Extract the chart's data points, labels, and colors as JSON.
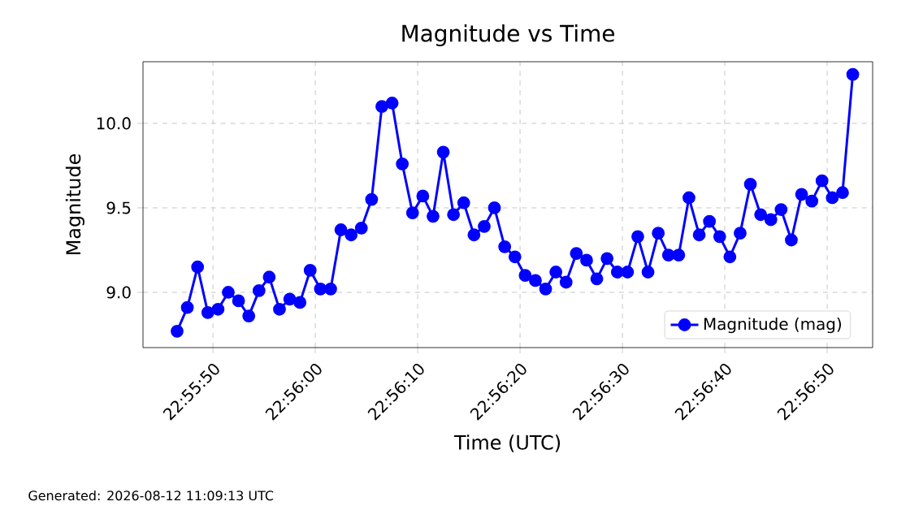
{
  "chart_data": {
    "type": "line",
    "title": "Magnitude vs Time",
    "xlabel": "Time (UTC)",
    "ylabel": "Magnitude",
    "x": [
      22.929583,
      22.929861,
      22.930139,
      22.930417,
      22.930694,
      22.930972,
      22.93125,
      22.931528,
      22.931806,
      22.932083,
      22.932361,
      22.932639,
      22.932917,
      22.933194,
      22.933472,
      22.93375,
      22.934028,
      22.934306,
      22.934583,
      22.934861,
      22.935139,
      22.935417,
      22.935694,
      22.935972,
      22.93625,
      22.936528,
      22.936806,
      22.937083,
      22.937361,
      22.937639,
      22.937917,
      22.938194,
      22.938472,
      22.93875,
      22.939028,
      22.939306,
      22.939583,
      22.939861,
      22.940139,
      22.940417,
      22.940694,
      22.940972,
      22.94125,
      22.941528,
      22.941806,
      22.942083,
      22.942361,
      22.942639,
      22.942917,
      22.943194,
      22.943472,
      22.94375,
      22.944028,
      22.944306,
      22.944583,
      22.944861,
      22.945139,
      22.945417,
      22.945694,
      22.945972,
      22.94625,
      22.946528,
      22.946806,
      22.947083,
      22.947361,
      22.947639,
      22.947917
    ],
    "series": [
      {
        "name": "Magnitude (mag)",
        "color": "#0000ff",
        "values": [
          8.77,
          8.91,
          9.15,
          8.88,
          8.9,
          9.0,
          8.95,
          8.86,
          9.01,
          9.09,
          8.9,
          8.96,
          8.94,
          9.13,
          9.02,
          9.02,
          9.37,
          9.34,
          9.38,
          9.55,
          10.1,
          10.12,
          9.76,
          9.47,
          9.57,
          9.45,
          9.83,
          9.46,
          9.53,
          9.34,
          9.39,
          9.5,
          9.27,
          9.21,
          9.1,
          9.07,
          9.02,
          9.12,
          9.06,
          9.23,
          9.19,
          9.08,
          9.2,
          9.12,
          9.12,
          9.33,
          9.12,
          9.35,
          9.22,
          9.22,
          9.56,
          9.34,
          9.42,
          9.33,
          9.21,
          9.35,
          9.64,
          9.46,
          9.43,
          9.49,
          9.31,
          9.58,
          9.54,
          9.66,
          9.56,
          9.59,
          10.29
        ]
      }
    ],
    "xlim": [
      22.928658,
      22.948456
    ],
    "xticks": [
      {
        "value": 22.930556,
        "label": "22:55:50"
      },
      {
        "value": 22.933333,
        "label": "22:56:00"
      },
      {
        "value": 22.936111,
        "label": "22:56:10"
      },
      {
        "value": 22.938889,
        "label": "22:56:20"
      },
      {
        "value": 22.941667,
        "label": "22:56:30"
      },
      {
        "value": 22.944444,
        "label": "22:56:40"
      },
      {
        "value": 22.947222,
        "label": "22:56:50"
      }
    ],
    "ylim": [
      8.673,
      10.365
    ],
    "yticks": [
      {
        "value": 9.0,
        "label": "9.0"
      },
      {
        "value": 9.5,
        "label": "9.5"
      },
      {
        "value": 10.0,
        "label": "10.0"
      }
    ],
    "grid": true,
    "legend": "bottom right",
    "marker": "circle",
    "line_style": "solid",
    "annotations": [
      "Generated: 2026-08-12 11:09:13 UTC"
    ]
  }
}
